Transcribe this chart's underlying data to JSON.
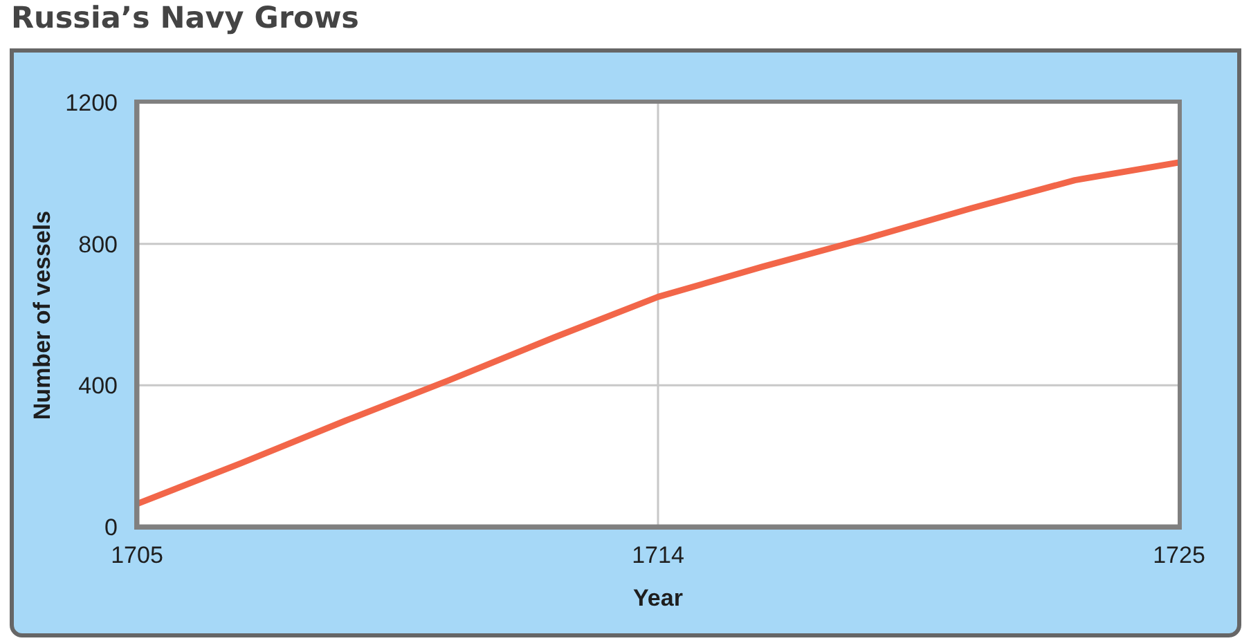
{
  "chart_data": {
    "type": "line",
    "title": "Russia’s Navy Grows",
    "xlabel": "Year",
    "ylabel": "Number of vessels",
    "categories": [
      "1705",
      null,
      null,
      null,
      null,
      "1714",
      null,
      null,
      null,
      null,
      "1725"
    ],
    "series": [
      {
        "color": "#f26649",
        "values": [
          65,
          180,
          300,
          415,
          535,
          650,
          735,
          815,
          900,
          980,
          1030
        ]
      }
    ],
    "ylim": [
      0,
      1200
    ],
    "yticks": [
      0,
      400,
      800,
      1200
    ],
    "grid": true,
    "marker": "none",
    "line_style": "solid"
  }
}
